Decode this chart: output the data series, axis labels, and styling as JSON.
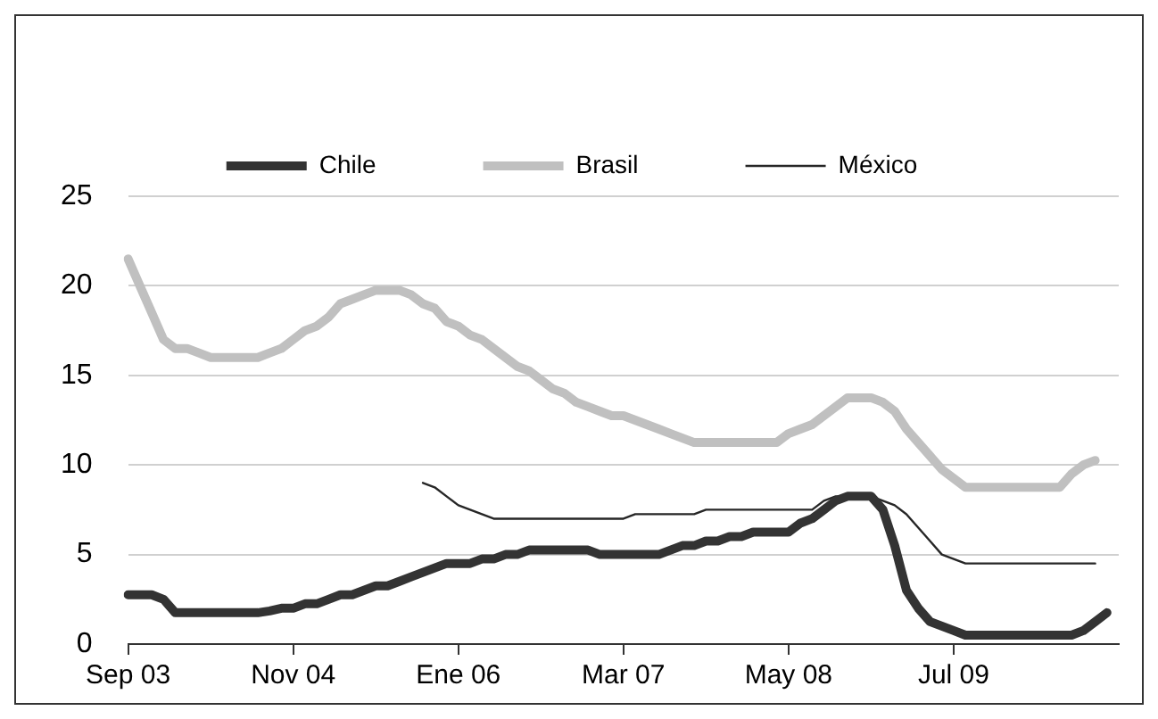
{
  "chart_data": {
    "type": "line",
    "categories": [
      "Sep 03",
      null,
      null,
      null,
      null,
      null,
      null,
      null,
      null,
      null,
      null,
      null,
      null,
      null,
      "Nov 04",
      null,
      null,
      null,
      null,
      null,
      null,
      null,
      null,
      null,
      null,
      null,
      null,
      null,
      "Ene 06",
      null,
      null,
      null,
      null,
      null,
      null,
      null,
      null,
      null,
      null,
      null,
      null,
      null,
      "Mar 07",
      null,
      null,
      null,
      null,
      null,
      null,
      null,
      null,
      null,
      null,
      null,
      null,
      null,
      "May 08",
      null,
      null,
      null,
      null,
      null,
      null,
      null,
      null,
      null,
      null,
      null,
      null,
      null,
      "Jul 09",
      null,
      null,
      null,
      null,
      null,
      null,
      null,
      null,
      null,
      null,
      null,
      null,
      null,
      null
    ],
    "series": [
      {
        "name": "Chile",
        "color": "#333333",
        "values": [
          2.75,
          2.75,
          2.75,
          2.5,
          1.75,
          1.75,
          1.75,
          1.75,
          1.75,
          1.75,
          1.75,
          1.75,
          1.85,
          2.0,
          2.0,
          2.25,
          2.25,
          2.5,
          2.75,
          2.75,
          3.0,
          3.25,
          3.25,
          3.5,
          3.75,
          4.0,
          4.25,
          4.5,
          4.5,
          4.5,
          4.75,
          4.75,
          5.0,
          5.0,
          5.25,
          5.25,
          5.25,
          5.25,
          5.25,
          5.25,
          5.0,
          5.0,
          5.0,
          5.0,
          5.0,
          5.0,
          5.25,
          5.5,
          5.5,
          5.75,
          5.75,
          6.0,
          6.0,
          6.25,
          6.25,
          6.25,
          6.25,
          6.75,
          7.0,
          7.5,
          8.0,
          8.25,
          8.25,
          8.25,
          7.5,
          5.5,
          3.0,
          2.0,
          1.25,
          1.0,
          0.75,
          0.5,
          0.5,
          0.5,
          0.5,
          0.5,
          0.5,
          0.5,
          0.5,
          0.5,
          0.5,
          0.75,
          1.25,
          1.75,
          null
        ]
      },
      {
        "name": "Brasil",
        "color": "#c0c0c0",
        "values": [
          21.5,
          20.0,
          18.5,
          17.0,
          16.5,
          16.5,
          16.25,
          16.0,
          16.0,
          16.0,
          16.0,
          16.0,
          16.25,
          16.5,
          17.0,
          17.5,
          17.75,
          18.25,
          19.0,
          19.25,
          19.5,
          19.75,
          19.75,
          19.75,
          19.5,
          19.0,
          18.75,
          18.0,
          17.75,
          17.25,
          17.0,
          16.5,
          16.0,
          15.5,
          15.25,
          14.75,
          14.25,
          14.0,
          13.5,
          13.25,
          13.0,
          12.75,
          12.75,
          12.5,
          12.25,
          12.0,
          11.75,
          11.5,
          11.25,
          11.25,
          11.25,
          11.25,
          11.25,
          11.25,
          11.25,
          11.25,
          11.75,
          12.0,
          12.25,
          12.75,
          13.25,
          13.75,
          13.75,
          13.75,
          13.5,
          13.0,
          12.0,
          11.25,
          10.5,
          9.75,
          9.25,
          8.75,
          8.75,
          8.75,
          8.75,
          8.75,
          8.75,
          8.75,
          8.75,
          8.75,
          9.5,
          10.0,
          10.25,
          null,
          null
        ]
      },
      {
        "name": "México",
        "color": "#262626",
        "values": [
          null,
          null,
          null,
          null,
          null,
          null,
          null,
          null,
          null,
          null,
          null,
          null,
          null,
          null,
          null,
          null,
          null,
          null,
          null,
          null,
          null,
          null,
          null,
          null,
          null,
          9.0,
          8.75,
          8.25,
          7.75,
          7.5,
          7.25,
          7.0,
          7.0,
          7.0,
          7.0,
          7.0,
          7.0,
          7.0,
          7.0,
          7.0,
          7.0,
          7.0,
          7.0,
          7.25,
          7.25,
          7.25,
          7.25,
          7.25,
          7.25,
          7.5,
          7.5,
          7.5,
          7.5,
          7.5,
          7.5,
          7.5,
          7.5,
          7.5,
          7.5,
          8.0,
          8.25,
          8.25,
          8.25,
          8.25,
          8.0,
          7.75,
          7.25,
          6.5,
          5.75,
          5.0,
          4.75,
          4.5,
          4.5,
          4.5,
          4.5,
          4.5,
          4.5,
          4.5,
          4.5,
          4.5,
          4.5,
          4.5,
          4.5,
          null,
          null
        ]
      }
    ],
    "ylim": [
      0,
      25
    ],
    "yticks": [
      0,
      5,
      10,
      15,
      20,
      25
    ],
    "grid": "y",
    "legend": "top",
    "marker": "none",
    "line_style": "solid"
  }
}
